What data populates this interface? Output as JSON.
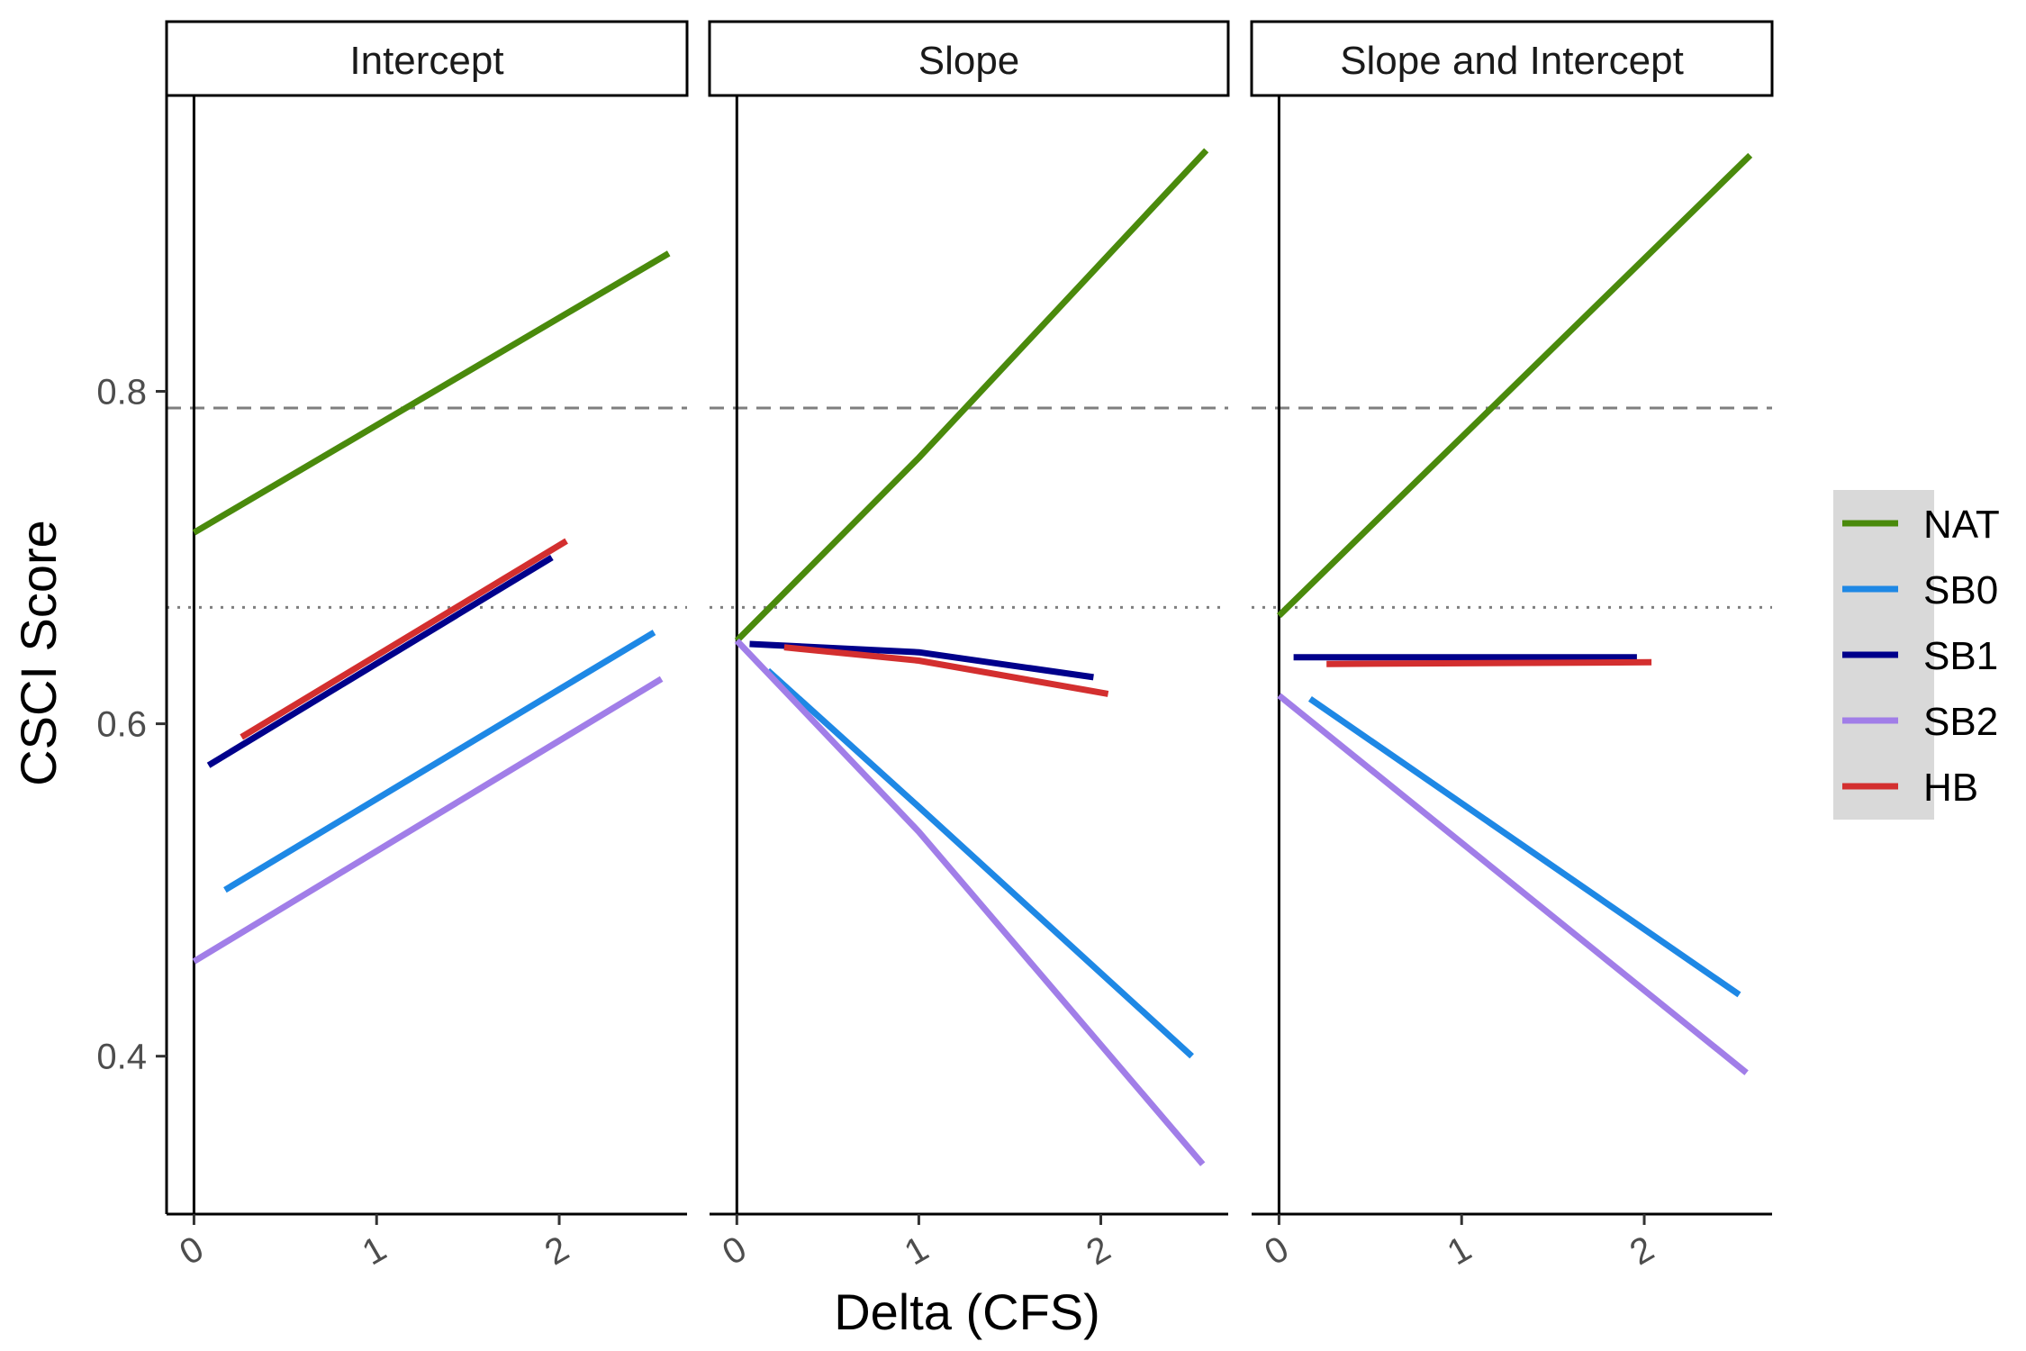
{
  "chart_data": {
    "type": "line",
    "xlabel": "Delta (CFS)",
    "ylabel": "CSCI Score",
    "xlim": [
      -0.15,
      2.7
    ],
    "ylim": [
      0.305,
      0.978
    ],
    "x_ticks": [
      0,
      1,
      2
    ],
    "x_tick_labels": [
      "0",
      "1",
      "2"
    ],
    "y_ticks": [
      0.4,
      0.6,
      0.8
    ],
    "y_tick_labels": [
      "0.4",
      "0.6",
      "0.8"
    ],
    "reference_lines": [
      {
        "y": 0.79,
        "style": "dashed",
        "color": "#7f7f7f"
      },
      {
        "y": 0.67,
        "style": "dotted",
        "color": "#7f7f7f"
      }
    ],
    "vertical_line_x": 0,
    "grid": false,
    "legend_position": "right",
    "legend": [
      {
        "name": "NAT",
        "color": "#4a8a0c"
      },
      {
        "name": "SB0",
        "color": "#1e88e5"
      },
      {
        "name": "SB1",
        "color": "#00008b"
      },
      {
        "name": "SB2",
        "color": "#a17ee8"
      },
      {
        "name": "HB",
        "color": "#d32f2f"
      }
    ],
    "panels": [
      {
        "title": "Intercept",
        "series": [
          {
            "name": "NAT",
            "color": "#4a8a0c",
            "x": [
              0,
              2.6
            ],
            "y": [
              0.715,
              0.883
            ]
          },
          {
            "name": "SB0",
            "color": "#1e88e5",
            "x": [
              0.17,
              2.52
            ],
            "y": [
              0.5,
              0.655
            ]
          },
          {
            "name": "SB1",
            "color": "#00008b",
            "x": [
              0.08,
              1.96
            ],
            "y": [
              0.575,
              0.7
            ]
          },
          {
            "name": "SB2",
            "color": "#a17ee8",
            "x": [
              0,
              2.56
            ],
            "y": [
              0.457,
              0.627
            ]
          },
          {
            "name": "HB",
            "color": "#d32f2f",
            "x": [
              0.26,
              2.04
            ],
            "y": [
              0.592,
              0.71
            ]
          }
        ]
      },
      {
        "title": "Slope",
        "series": [
          {
            "name": "NAT",
            "color": "#4a8a0c",
            "x": [
              0,
              1.0,
              2.58
            ],
            "y": [
              0.65,
              0.76,
              0.945
            ]
          },
          {
            "name": "SB0",
            "color": "#1e88e5",
            "x": [
              0.17,
              1.0,
              2.5
            ],
            "y": [
              0.632,
              0.55,
              0.4
            ]
          },
          {
            "name": "SB1",
            "color": "#00008b",
            "x": [
              0.07,
              1.0,
              1.96
            ],
            "y": [
              0.648,
              0.643,
              0.628
            ]
          },
          {
            "name": "SB2",
            "color": "#a17ee8",
            "x": [
              0,
              1.0,
              2.56
            ],
            "y": [
              0.65,
              0.535,
              0.335
            ]
          },
          {
            "name": "HB",
            "color": "#d32f2f",
            "x": [
              0.26,
              1.0,
              2.04
            ],
            "y": [
              0.646,
              0.638,
              0.618
            ]
          }
        ]
      },
      {
        "title": "Slope and Intercept",
        "series": [
          {
            "name": "NAT",
            "color": "#4a8a0c",
            "x": [
              0,
              2.58
            ],
            "y": [
              0.665,
              0.942
            ]
          },
          {
            "name": "SB0",
            "color": "#1e88e5",
            "x": [
              0.17,
              2.52
            ],
            "y": [
              0.615,
              0.437
            ]
          },
          {
            "name": "SB1",
            "color": "#00008b",
            "x": [
              0.08,
              1.96
            ],
            "y": [
              0.64,
              0.64
            ]
          },
          {
            "name": "SB2",
            "color": "#a17ee8",
            "x": [
              0,
              2.56
            ],
            "y": [
              0.617,
              0.39
            ]
          },
          {
            "name": "HB",
            "color": "#d32f2f",
            "x": [
              0.26,
              2.04
            ],
            "y": [
              0.636,
              0.637
            ]
          }
        ]
      }
    ]
  }
}
